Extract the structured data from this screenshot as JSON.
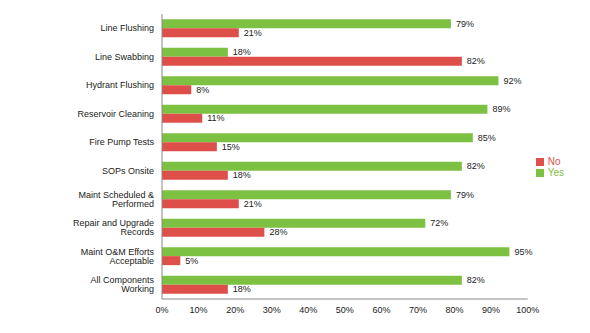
{
  "chart_data": {
    "type": "bar",
    "orientation": "horizontal",
    "categories": [
      "Line Flushing",
      "Line Swabbing",
      "Hydrant Flushing",
      "Reservoir Cleaning",
      "Fire Pump Tests",
      "SOPs Onsite",
      "Maint Scheduled & Performed",
      "Repair and Upgrade Records",
      "Maint O&M Efforts Acceptable",
      "All Components Working"
    ],
    "series": [
      {
        "name": "Yes",
        "color": "#7DC142",
        "values": [
          79,
          18,
          92,
          89,
          85,
          82,
          79,
          72,
          95,
          82
        ],
        "value_labels": [
          "79%",
          "18%",
          "92%",
          "89%",
          "85%",
          "82%",
          "79%",
          "72%",
          "95%",
          "82%"
        ]
      },
      {
        "name": "No",
        "color": "#DE4F4A",
        "values": [
          21,
          82,
          8,
          11,
          15,
          18,
          21,
          28,
          5,
          18
        ],
        "value_labels": [
          "21%",
          "82%",
          "8%",
          "11%",
          "15%",
          "18%",
          "21%",
          "28%",
          "5%",
          "18%"
        ]
      }
    ],
    "xlim": [
      0,
      100
    ],
    "xticks": [
      {
        "value": 0,
        "label": "0%"
      },
      {
        "value": 10,
        "label": "10%"
      },
      {
        "value": 20,
        "label": "20%"
      },
      {
        "value": 30,
        "label": "30%"
      },
      {
        "value": 40,
        "label": "40%"
      },
      {
        "value": 50,
        "label": "50%"
      },
      {
        "value": 60,
        "label": "60%"
      },
      {
        "value": 70,
        "label": "70%"
      },
      {
        "value": 80,
        "label": "80%"
      },
      {
        "value": 90,
        "label": "90%"
      },
      {
        "value": 100,
        "label": "100%"
      }
    ],
    "grid": false,
    "legend": "right",
    "data_labels": true
  }
}
